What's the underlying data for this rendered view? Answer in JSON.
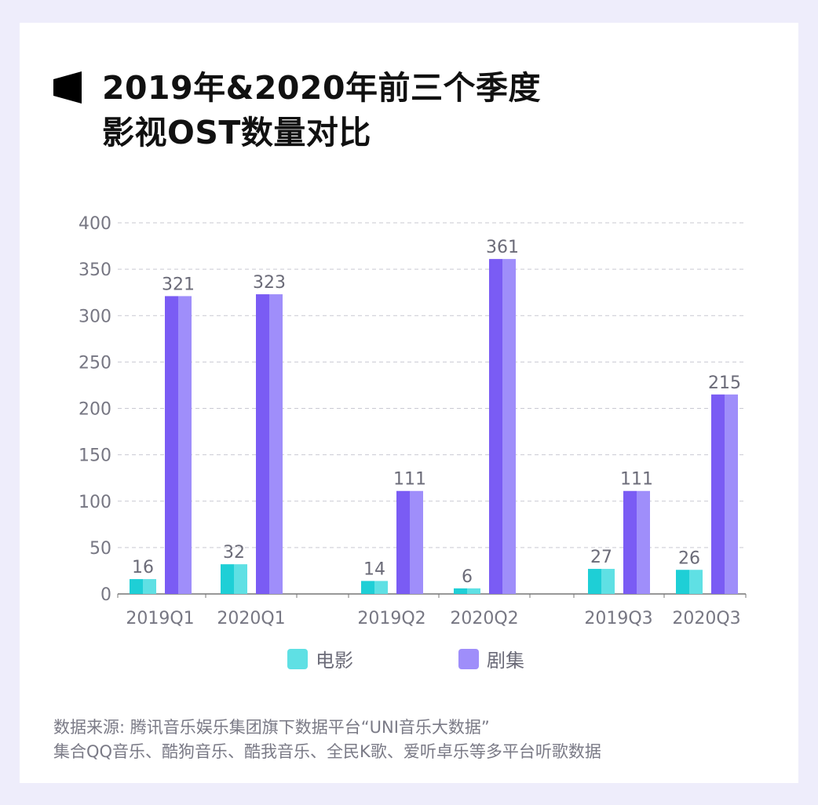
{
  "title_lines": [
    "2019年&2020年前三个季度",
    "影视OST数量对比"
  ],
  "chart_data": {
    "type": "bar",
    "categories": [
      "2019Q1",
      "2020Q1",
      "2019Q2",
      "2020Q2",
      "2019Q3",
      "2020Q3"
    ],
    "series": [
      {
        "name": "电影",
        "values": [
          16,
          32,
          14,
          6,
          27,
          26
        ],
        "color": "#1ecfd6",
        "color_light": "#5fe0e4"
      },
      {
        "name": "剧集",
        "values": [
          321,
          323,
          111,
          361,
          111,
          215
        ],
        "color": "#7a5cf4",
        "color_light": "#9f8efa"
      }
    ],
    "ylim": [
      0,
      400
    ],
    "yticks": [
      0,
      50,
      100,
      150,
      200,
      250,
      300,
      350,
      400
    ],
    "grid": true,
    "legend": "bottom",
    "data_labels": true
  },
  "source": {
    "line1": "数据来源: 腾讯音乐娱乐集团旗下数据平台“UNI音乐大数据”",
    "line2": "集合QQ音乐、酷狗音乐、酷我音乐、全民K歌、爱听卓乐等多平台听歌数据"
  }
}
